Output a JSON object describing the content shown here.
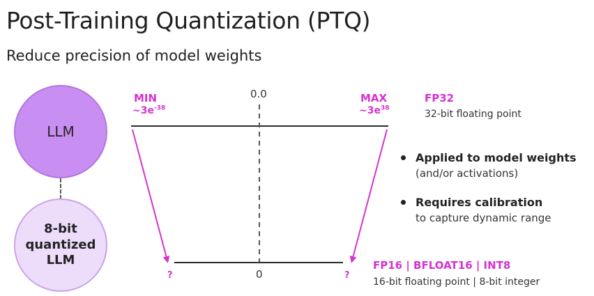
{
  "title": "Post-Training Quantization (PTQ)",
  "subtitle": "Reduce precision of model weights",
  "circles": {
    "llm": "LLM",
    "quantized": [
      "8-bit",
      "quantized",
      "LLM"
    ]
  },
  "top_range": {
    "min": "MIN",
    "max": "MAX",
    "min_value": "~3e",
    "min_exp": "-38",
    "max_value": "~3e",
    "max_exp": "38",
    "center": "0.0"
  },
  "bottom_range": {
    "left": "?",
    "right": "?",
    "center": "0"
  },
  "formats": {
    "fp32_name": "FP32",
    "fp32_desc": "32-bit floating point",
    "low_name": "FP16 | BFLOAT16 | INT8",
    "low_desc": "16-bit floating point | 8-bit integer"
  },
  "bullets": [
    {
      "head": "Applied to model weights",
      "sub": "(and/or activations)"
    },
    {
      "head": "Requires calibration",
      "sub": "to capture dynamic range"
    }
  ],
  "colors": {
    "accent": "#d433cf",
    "llm_fill": "#c98ef1",
    "quantized_fill": "#eedcfb"
  }
}
